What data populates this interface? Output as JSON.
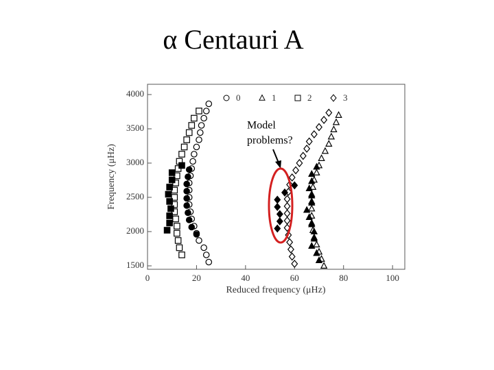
{
  "chart_data": {
    "type": "scatter",
    "title": "α Centauri A",
    "xlabel": "Reduced frequency (μHz)",
    "ylabel": "Frequency (μHz)",
    "xlim": [
      0,
      105
    ],
    "ylim": [
      1450,
      4150
    ],
    "xticks": [
      0,
      20,
      40,
      60,
      80,
      100
    ],
    "yticks": [
      1500,
      2000,
      2500,
      3000,
      3500,
      4000
    ],
    "annotation": [
      "Model",
      "problems?"
    ],
    "annotation_color": "#d42020",
    "series": [
      {
        "name": "0",
        "marker": "circle",
        "filled": false,
        "color": "#000000",
        "x": [
          25,
          24,
          23,
          21,
          20,
          19,
          18,
          17.5,
          17,
          17,
          17,
          17,
          17.5,
          18,
          18.5,
          19,
          20,
          21,
          21.5,
          22,
          23,
          24,
          25
        ],
        "y": [
          1555,
          1660,
          1765,
          1870,
          1975,
          2080,
          2185,
          2290,
          2395,
          2500,
          2605,
          2710,
          2815,
          2920,
          3025,
          3130,
          3235,
          3340,
          3445,
          3550,
          3655,
          3760,
          3865
        ]
      },
      {
        "name": "1",
        "marker": "triangle",
        "filled": false,
        "color": "#000000",
        "x": [
          72,
          71,
          70,
          69,
          68,
          67.5,
          67,
          67,
          67,
          67,
          67,
          67.5,
          68,
          69,
          70,
          71,
          72.5,
          74,
          75,
          76,
          77,
          78
        ],
        "y": [
          1500,
          1600,
          1705,
          1810,
          1915,
          2020,
          2125,
          2230,
          2335,
          2440,
          2545,
          2650,
          2755,
          2860,
          2965,
          3070,
          3175,
          3280,
          3385,
          3490,
          3595,
          3700
        ]
      },
      {
        "name": "2",
        "marker": "square",
        "filled": false,
        "color": "#000000",
        "x": [
          14,
          13,
          12.5,
          12,
          12,
          11.5,
          11,
          11,
          11,
          11,
          11.5,
          12,
          12.5,
          13,
          14,
          15,
          16,
          17,
          18,
          19,
          21
        ],
        "y": [
          1660,
          1765,
          1870,
          1975,
          2080,
          2185,
          2290,
          2395,
          2500,
          2605,
          2710,
          2815,
          2920,
          3025,
          3130,
          3235,
          3340,
          3445,
          3550,
          3655,
          3760
        ]
      },
      {
        "name": "3",
        "marker": "diamond",
        "filled": false,
        "color": "#000000",
        "x": [
          60,
          59,
          58.5,
          58,
          57.5,
          57,
          57,
          57,
          57,
          57,
          57.5,
          58,
          59,
          60.5,
          62,
          63.5,
          65,
          66,
          68,
          70,
          72,
          74
        ],
        "y": [
          1530,
          1635,
          1740,
          1845,
          1950,
          2055,
          2160,
          2265,
          2370,
          2475,
          2580,
          2685,
          2790,
          2895,
          3000,
          3105,
          3210,
          3315,
          3420,
          3525,
          3630,
          3735
        ]
      },
      {
        "marker": "circle",
        "filled": true,
        "color": "#000000",
        "x": [
          20,
          18,
          17,
          16.5,
          16,
          16,
          16,
          16,
          16.5,
          17
        ],
        "y": [
          1960,
          2065,
          2170,
          2275,
          2380,
          2485,
          2590,
          2695,
          2800,
          2905
        ]
      },
      {
        "marker": "triangle",
        "filled": true,
        "color": "#000000",
        "x": [
          70,
          69,
          67,
          68,
          68,
          67,
          66,
          65,
          67,
          67,
          66,
          67,
          67,
          69
        ],
        "y": [
          1580,
          1685,
          1790,
          1895,
          2000,
          2105,
          2210,
          2315,
          2420,
          2525,
          2630,
          2735,
          2840,
          2945
        ]
      },
      {
        "marker": "square",
        "filled": true,
        "color": "#000000",
        "x": [
          8,
          9,
          9,
          9.5,
          9,
          8.5,
          9,
          10,
          10,
          14
        ],
        "y": [
          2020,
          2125,
          2230,
          2335,
          2440,
          2545,
          2650,
          2755,
          2860,
          2965
        ]
      },
      {
        "marker": "diamond",
        "filled": true,
        "color": "#000000",
        "x": [
          53,
          54,
          54,
          53,
          53,
          56,
          60
        ],
        "y": [
          2045,
          2150,
          2255,
          2360,
          2465,
          2570,
          2675
        ]
      }
    ]
  }
}
